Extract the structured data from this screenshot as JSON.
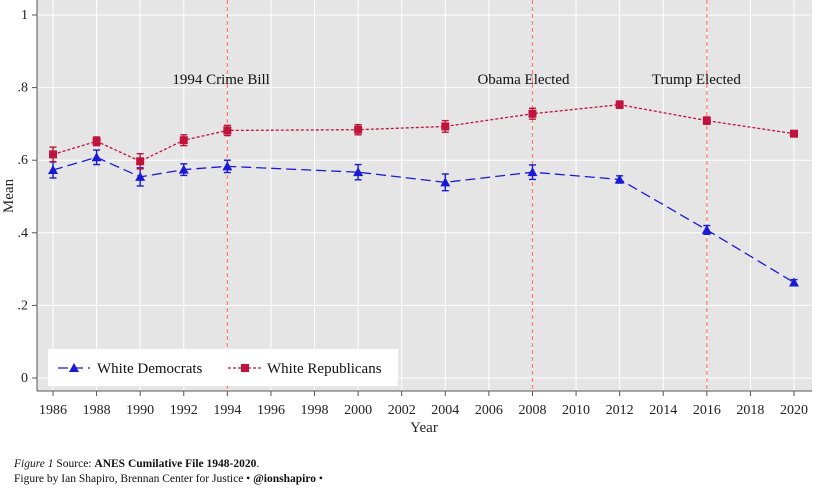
{
  "chart_data": {
    "type": "line",
    "xlabel": "Year",
    "ylabel": "Mean",
    "xlim": [
      1986,
      2020
    ],
    "ylim": [
      0,
      1
    ],
    "x_ticks": [
      1986,
      1988,
      1990,
      1992,
      1994,
      1996,
      1998,
      2000,
      2002,
      2004,
      2006,
      2008,
      2010,
      2012,
      2014,
      2016,
      2018,
      2020
    ],
    "y_ticks": [
      {
        "value": 0,
        "label": "0"
      },
      {
        "value": 0.2,
        "label": ".2"
      },
      {
        "value": 0.4,
        "label": ".4"
      },
      {
        "value": 0.6,
        "label": ".6"
      },
      {
        "value": 0.8,
        "label": ".8"
      },
      {
        "value": 1,
        "label": "1"
      }
    ],
    "grid": true,
    "legend_position": "bottom-left",
    "series": [
      {
        "name": "White Democrats",
        "color": "#1a1ad6",
        "marker": "triangle",
        "x": [
          1986,
          1988,
          1990,
          1992,
          1994,
          2000,
          2004,
          2008,
          2012,
          2016,
          2020
        ],
        "y": [
          0.573,
          0.608,
          0.554,
          0.574,
          0.583,
          0.567,
          0.539,
          0.567,
          0.547,
          0.408,
          0.263
        ],
        "ci_low": [
          0.551,
          0.588,
          0.529,
          0.558,
          0.566,
          0.546,
          0.516,
          0.547,
          0.537,
          0.396,
          0.255
        ],
        "ci_high": [
          0.595,
          0.628,
          0.579,
          0.59,
          0.6,
          0.588,
          0.562,
          0.587,
          0.557,
          0.42,
          0.271
        ]
      },
      {
        "name": "White Republicans",
        "color": "#c0143c",
        "marker": "square",
        "x": [
          1986,
          1988,
          1990,
          1992,
          1994,
          2000,
          2004,
          2008,
          2012,
          2016,
          2020
        ],
        "y": [
          0.616,
          0.652,
          0.597,
          0.655,
          0.682,
          0.684,
          0.693,
          0.728,
          0.753,
          0.709,
          0.673
        ],
        "ci_low": [
          0.596,
          0.64,
          0.576,
          0.64,
          0.668,
          0.67,
          0.677,
          0.713,
          0.743,
          0.699,
          0.665
        ],
        "ci_high": [
          0.636,
          0.664,
          0.618,
          0.67,
          0.696,
          0.698,
          0.709,
          0.743,
          0.763,
          0.719,
          0.681
        ]
      }
    ],
    "annotations": [
      {
        "x": 1994,
        "label": "1994 Crime Bill"
      },
      {
        "x": 2008,
        "label": "Obama Elected"
      },
      {
        "x": 2016,
        "label": "Trump Elected"
      }
    ],
    "vline_color": "#ff7b6b"
  },
  "caption": {
    "figure_label": "Figure 1",
    "source_prefix": "Source:",
    "source_value": "ANES Cumilative File 1948-2020",
    "source_suffix": ".",
    "credit_text": "Figure by Ian Shapiro, Brennan Center for Justice  •",
    "handle": "@ionshapiro",
    "credit_suffix": "•"
  }
}
